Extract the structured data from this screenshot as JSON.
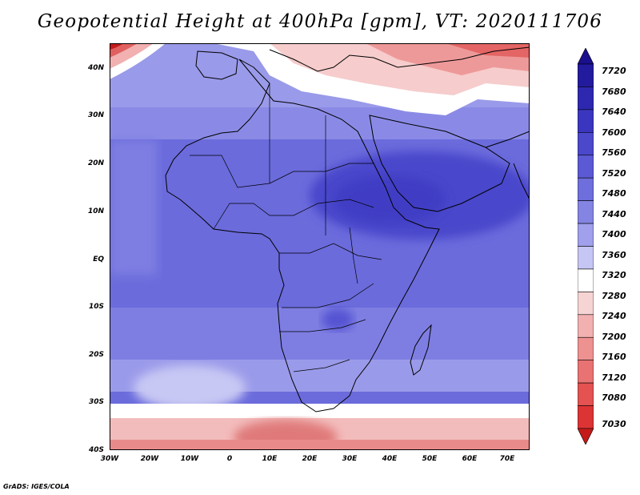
{
  "title": "Geopotential Height at 400hPa [gpm], VT: 2020111706",
  "credit": "GrADS: IGES/COLA",
  "map": {
    "lat_labels": [
      "40N",
      "30N",
      "20N",
      "10N",
      "EQ",
      "10S",
      "20S",
      "30S",
      "40S"
    ],
    "lon_labels": [
      "30W",
      "20W",
      "10W",
      "0",
      "10E",
      "20E",
      "30E",
      "40E",
      "50E",
      "60E",
      "70E"
    ],
    "lon_range": [
      -30,
      75
    ],
    "lat_range": [
      -40,
      45
    ]
  },
  "colorbar": {
    "levels": [
      "7720",
      "7680",
      "7640",
      "7600",
      "7560",
      "7520",
      "7480",
      "7440",
      "7400",
      "7360",
      "7320",
      "7280",
      "7240",
      "7200",
      "7160",
      "7120",
      "7080",
      "7030"
    ],
    "colors_top_to_bottom": [
      "#1a0f8c",
      "#231b9e",
      "#2e28b0",
      "#3a36bf",
      "#4b48cc",
      "#5b5ad4",
      "#6e6edc",
      "#8484e3",
      "#a0a0ec",
      "#c6c6f4",
      "#ffffff",
      "#f7d4d4",
      "#f2b0b0",
      "#ee9191",
      "#e97272",
      "#e45252",
      "#dc3434",
      "#c41a1a"
    ]
  }
}
